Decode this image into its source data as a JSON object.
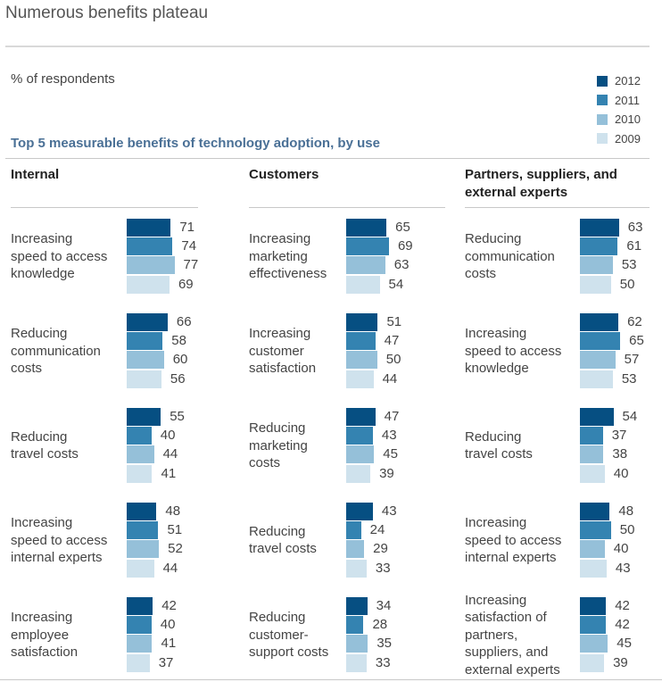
{
  "page": {
    "title": "Numerous benefits plateau"
  },
  "chart_data": {
    "type": "bar",
    "orientation": "horizontal",
    "ylabel": "% of respondents",
    "title": "Top 5 measurable benefits of technology adoption, by use",
    "legend": {
      "placement": "top-right",
      "items": [
        {
          "name": "2012",
          "color": "#064f82"
        },
        {
          "name": "2011",
          "color": "#3483b1"
        },
        {
          "name": "2010",
          "color": "#95c0d9"
        },
        {
          "name": "2009",
          "color": "#cfe2ed"
        }
      ]
    },
    "series_order": [
      "2012",
      "2011",
      "2010",
      "2009"
    ],
    "xlim": [
      0,
      100
    ],
    "panels": [
      {
        "heading": "Internal",
        "categories": [
          {
            "label": "Increasing speed to access knowledge",
            "lines": [
              "Increasing",
              "speed to access",
              "knowledge"
            ],
            "values": [
              71,
              74,
              77,
              69
            ]
          },
          {
            "label": "Reducing communication costs",
            "lines": [
              "Reducing",
              "communication",
              "costs"
            ],
            "values": [
              66,
              58,
              60,
              56
            ]
          },
          {
            "label": "Reducing travel costs",
            "lines": [
              "Reducing",
              "travel costs"
            ],
            "values": [
              55,
              40,
              44,
              41
            ]
          },
          {
            "label": "Increasing speed to access internal experts",
            "lines": [
              "Increasing",
              "speed to access",
              "internal experts"
            ],
            "values": [
              48,
              51,
              52,
              44
            ]
          },
          {
            "label": "Increasing employee satisfaction",
            "lines": [
              "Increasing",
              "employee",
              "satisfaction"
            ],
            "values": [
              42,
              40,
              41,
              37
            ]
          }
        ]
      },
      {
        "heading": "Customers",
        "categories": [
          {
            "label": "Increasing marketing effectiveness",
            "lines": [
              "Increasing",
              "marketing",
              "effectiveness"
            ],
            "values": [
              65,
              69,
              63,
              54
            ]
          },
          {
            "label": "Increasing customer satisfaction",
            "lines": [
              "Increasing",
              "customer",
              "satisfaction"
            ],
            "values": [
              51,
              47,
              50,
              44
            ]
          },
          {
            "label": "Reducing marketing costs",
            "lines": [
              "Reducing",
              "marketing",
              "costs"
            ],
            "values": [
              47,
              43,
              45,
              39
            ]
          },
          {
            "label": "Reducing travel costs",
            "lines": [
              "Reducing",
              "travel costs"
            ],
            "values": [
              43,
              24,
              29,
              33
            ]
          },
          {
            "label": "Reducing customer-support costs",
            "lines": [
              "Reducing",
              "customer-",
              "support costs"
            ],
            "values": [
              34,
              28,
              35,
              33
            ]
          }
        ]
      },
      {
        "heading": "Partners, suppliers, and external experts",
        "heading_lines": [
          "Partners, suppliers, and",
          "external experts"
        ],
        "categories": [
          {
            "label": "Reducing communication costs",
            "lines": [
              "Reducing",
              "communication",
              "costs"
            ],
            "values": [
              63,
              61,
              53,
              50
            ]
          },
          {
            "label": "Increasing speed to access knowledge",
            "lines": [
              "Increasing",
              "speed to access",
              "knowledge"
            ],
            "values": [
              62,
              65,
              57,
              53
            ]
          },
          {
            "label": "Reducing travel costs",
            "lines": [
              "Reducing",
              "travel costs"
            ],
            "values": [
              54,
              37,
              38,
              40
            ]
          },
          {
            "label": "Increasing speed to access internal experts",
            "lines": [
              "Increasing",
              "speed to access",
              "internal experts"
            ],
            "values": [
              48,
              50,
              40,
              43
            ]
          },
          {
            "label": "Increasing satisfaction of partners, suppliers, and external experts",
            "lines": [
              "Increasing",
              "satisfaction of",
              "partners,",
              "suppliers, and",
              "external experts"
            ],
            "values": [
              42,
              42,
              45,
              39
            ]
          }
        ]
      }
    ]
  }
}
